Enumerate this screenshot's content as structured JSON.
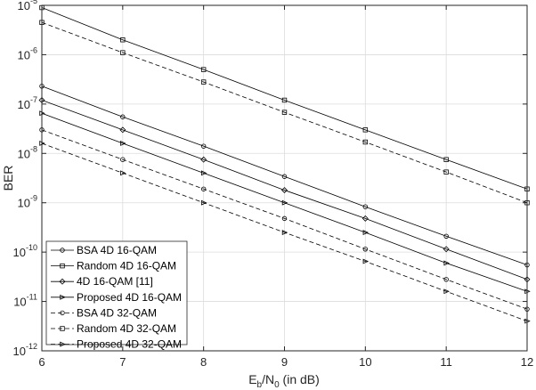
{
  "chart_data": {
    "type": "line",
    "title": "",
    "xlabel": {
      "main": "E",
      "sub1": "b",
      "mid": "/N",
      "sub2": "0",
      "tail": " (in dB)"
    },
    "ylabel": "BER",
    "xlim": [
      6,
      12
    ],
    "ylim_log10": [
      -12,
      -5
    ],
    "yscale": "log",
    "grid": true,
    "legend_position": "bottom-left",
    "x_ticks": [
      "6",
      "7",
      "8",
      "9",
      "10",
      "11",
      "12"
    ],
    "y_ticks": [
      {
        "base": "10",
        "exp": "-5"
      },
      {
        "base": "10",
        "exp": "-6"
      },
      {
        "base": "10",
        "exp": "-7"
      },
      {
        "base": "10",
        "exp": "-8"
      },
      {
        "base": "10",
        "exp": "-9"
      },
      {
        "base": "10",
        "exp": "-10"
      },
      {
        "base": "10",
        "exp": "-11"
      },
      {
        "base": "10",
        "exp": "-12"
      }
    ],
    "x": [
      6,
      7,
      8,
      9,
      10,
      11,
      12
    ],
    "series": [
      {
        "name": "BSA 4D 16-QAM",
        "marker": "circle",
        "dash": "solid",
        "values": [
          2.3e-07,
          5.5e-08,
          1.4e-08,
          3.4e-09,
          8.3e-10,
          2.1e-10,
          5.5e-11
        ]
      },
      {
        "name": "Random 4D 16-QAM",
        "marker": "square",
        "dash": "solid",
        "values": [
          9e-06,
          2e-06,
          5e-07,
          1.2e-07,
          3e-08,
          7.5e-09,
          1.9e-09
        ]
      },
      {
        "name": "4D 16-QAM [11]",
        "marker": "diamond",
        "dash": "solid",
        "values": [
          1.2e-07,
          3e-08,
          7.5e-09,
          1.8e-09,
          4.8e-10,
          1.15e-10,
          2.8e-11
        ]
      },
      {
        "name": "Proposed 4D 16-QAM",
        "marker": "triangle",
        "dash": "solid",
        "values": [
          6.5e-08,
          1.6e-08,
          4e-09,
          1e-09,
          2.5e-10,
          6e-11,
          1.6e-11
        ]
      },
      {
        "name": "BSA 4D 32-QAM",
        "marker": "circle",
        "dash": "dashed",
        "values": [
          3e-08,
          7.5e-09,
          1.9e-09,
          4.8e-10,
          1.15e-10,
          2.8e-11,
          7e-12
        ]
      },
      {
        "name": "Random 4D 32-QAM",
        "marker": "square",
        "dash": "dashed",
        "values": [
          4.5e-06,
          1.1e-06,
          2.8e-07,
          6.8e-08,
          1.7e-08,
          4.2e-09,
          1e-09
        ]
      },
      {
        "name": "Proposed 4D 32-QAM",
        "marker": "triangle",
        "dash": "dashed",
        "values": [
          1.6e-08,
          4e-09,
          1e-09,
          2.5e-10,
          6.5e-11,
          1.6e-11,
          4e-12
        ]
      }
    ]
  }
}
